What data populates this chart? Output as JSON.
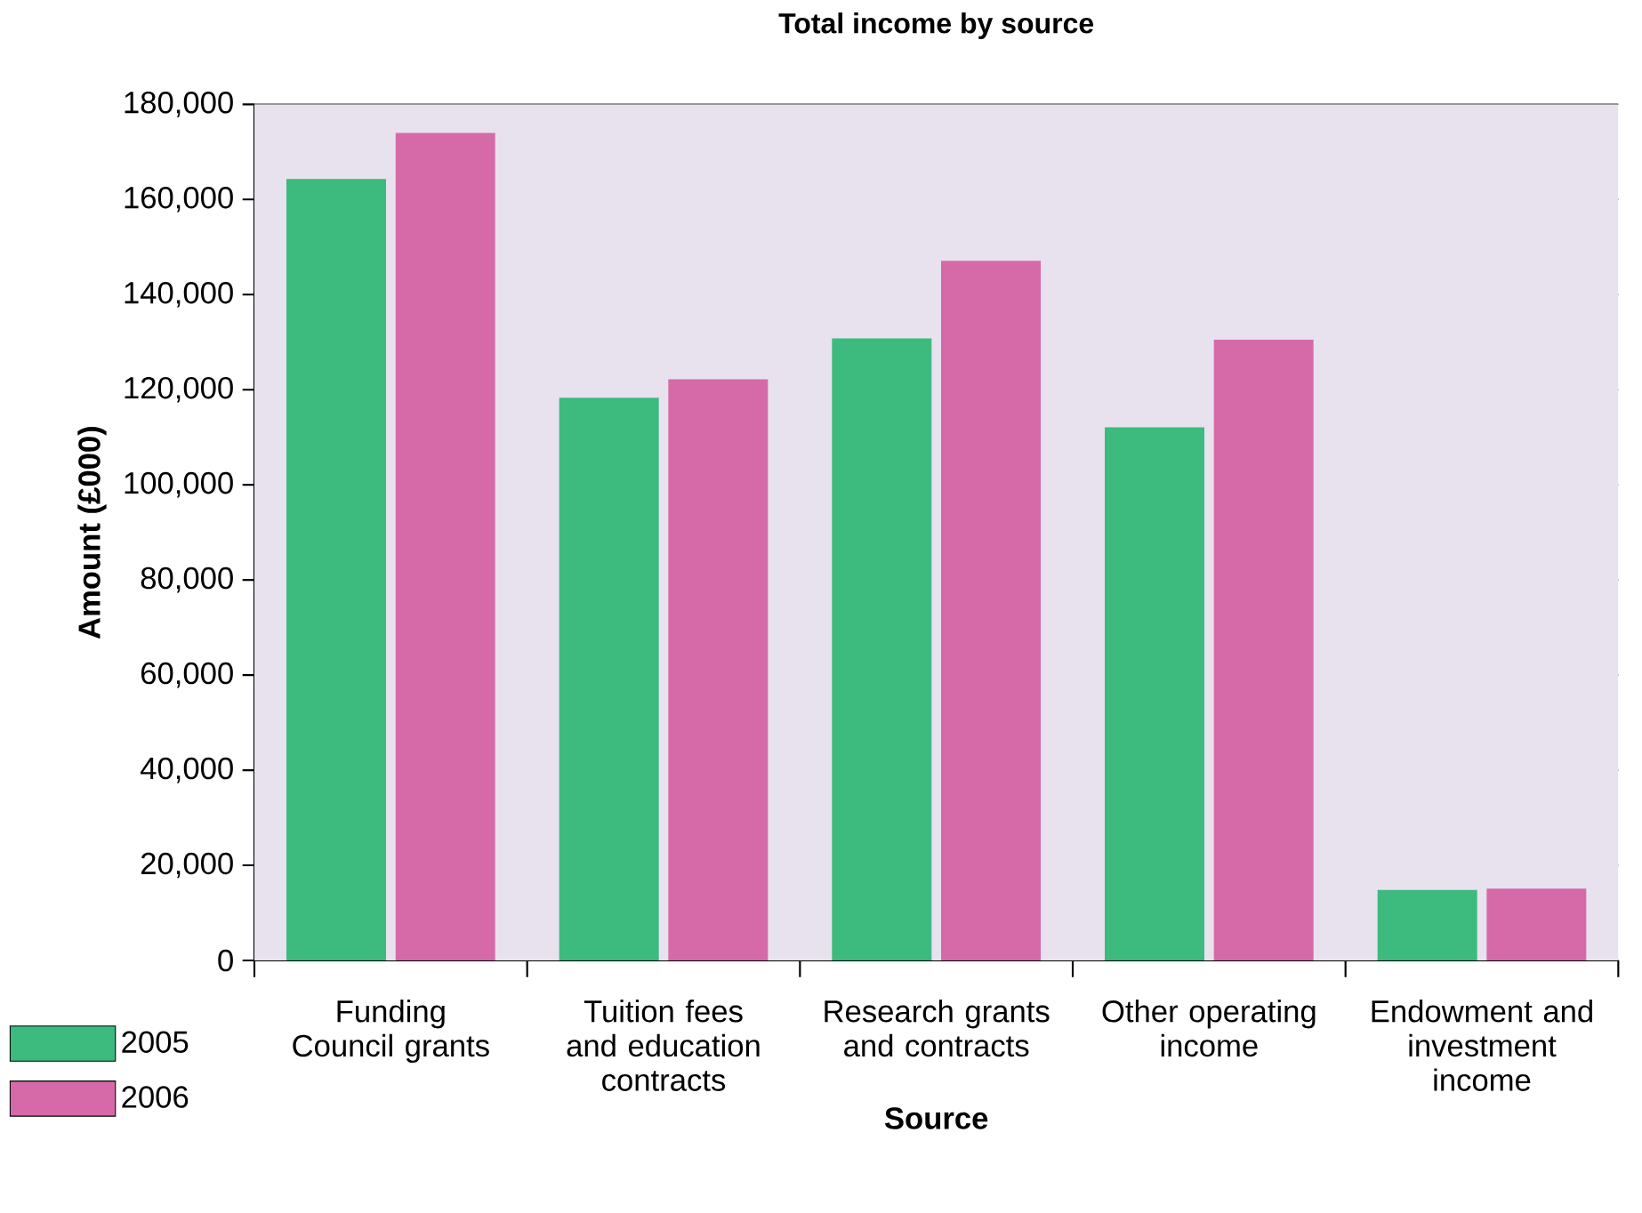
{
  "chart_data": {
    "type": "bar",
    "title": "Total income by source",
    "xlabel": "Source",
    "ylabel": "Amount (£000)",
    "categories": [
      "Funding Council grants",
      "Tuition fees and education contracts",
      "Research grants and contracts",
      "Other operating income",
      "Endowment and investment income"
    ],
    "series": [
      {
        "name": "2005",
        "color": "#3dba7e",
        "values": [
          164300,
          118300,
          130800,
          112100,
          14800
        ]
      },
      {
        "name": "2006",
        "color": "#d66aa8",
        "values": [
          174000,
          122200,
          147100,
          130500,
          15100
        ]
      }
    ],
    "ylim": [
      0,
      180000
    ],
    "yticks": [
      {
        "value": 0,
        "label": "0"
      },
      {
        "value": 20000,
        "label": "20,000"
      },
      {
        "value": 40000,
        "label": "40,000"
      },
      {
        "value": 60000,
        "label": "60,000"
      },
      {
        "value": 80000,
        "label": "80,000"
      },
      {
        "value": 100000,
        "label": "100,000"
      },
      {
        "value": 120000,
        "label": "120,000"
      },
      {
        "value": 140000,
        "label": "140,000"
      },
      {
        "value": 160000,
        "label": "160,000"
      },
      {
        "value": 180000,
        "label": "180,000"
      }
    ],
    "grid": "y",
    "legend": "bottom left"
  }
}
